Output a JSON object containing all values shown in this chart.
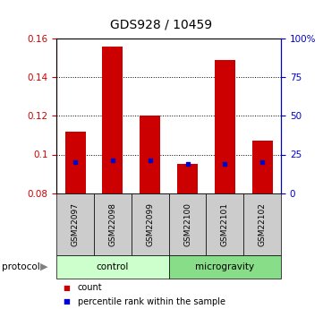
{
  "title": "GDS928 / 10459",
  "samples": [
    "GSM22097",
    "GSM22098",
    "GSM22099",
    "GSM22100",
    "GSM22101",
    "GSM22102"
  ],
  "count_values": [
    0.112,
    0.156,
    0.12,
    0.095,
    0.149,
    0.107
  ],
  "percentile_values": [
    0.096,
    0.097,
    0.097,
    0.095,
    0.095,
    0.096
  ],
  "bar_bottom": 0.08,
  "ylim_left": [
    0.08,
    0.16
  ],
  "ylim_right": [
    0,
    100
  ],
  "yticks_left": [
    0.08,
    0.1,
    0.12,
    0.14,
    0.16
  ],
  "yticks_right": [
    0,
    25,
    50,
    75,
    100
  ],
  "ytick_labels_left": [
    "0.08",
    "0.1",
    "0.12",
    "0.14",
    "0.16"
  ],
  "ytick_labels_right": [
    "0",
    "25",
    "50",
    "75",
    "100%"
  ],
  "groups": [
    {
      "label": "control",
      "n": 3,
      "color": "#ccffcc"
    },
    {
      "label": "microgravity",
      "n": 3,
      "color": "#88dd88"
    }
  ],
  "bar_color": "#cc0000",
  "percentile_color": "#0000cc",
  "bar_width": 0.55,
  "legend_count_label": "count",
  "legend_percentile_label": "percentile rank within the sample",
  "sample_box_color": "#cccccc",
  "title_fontsize": 10
}
